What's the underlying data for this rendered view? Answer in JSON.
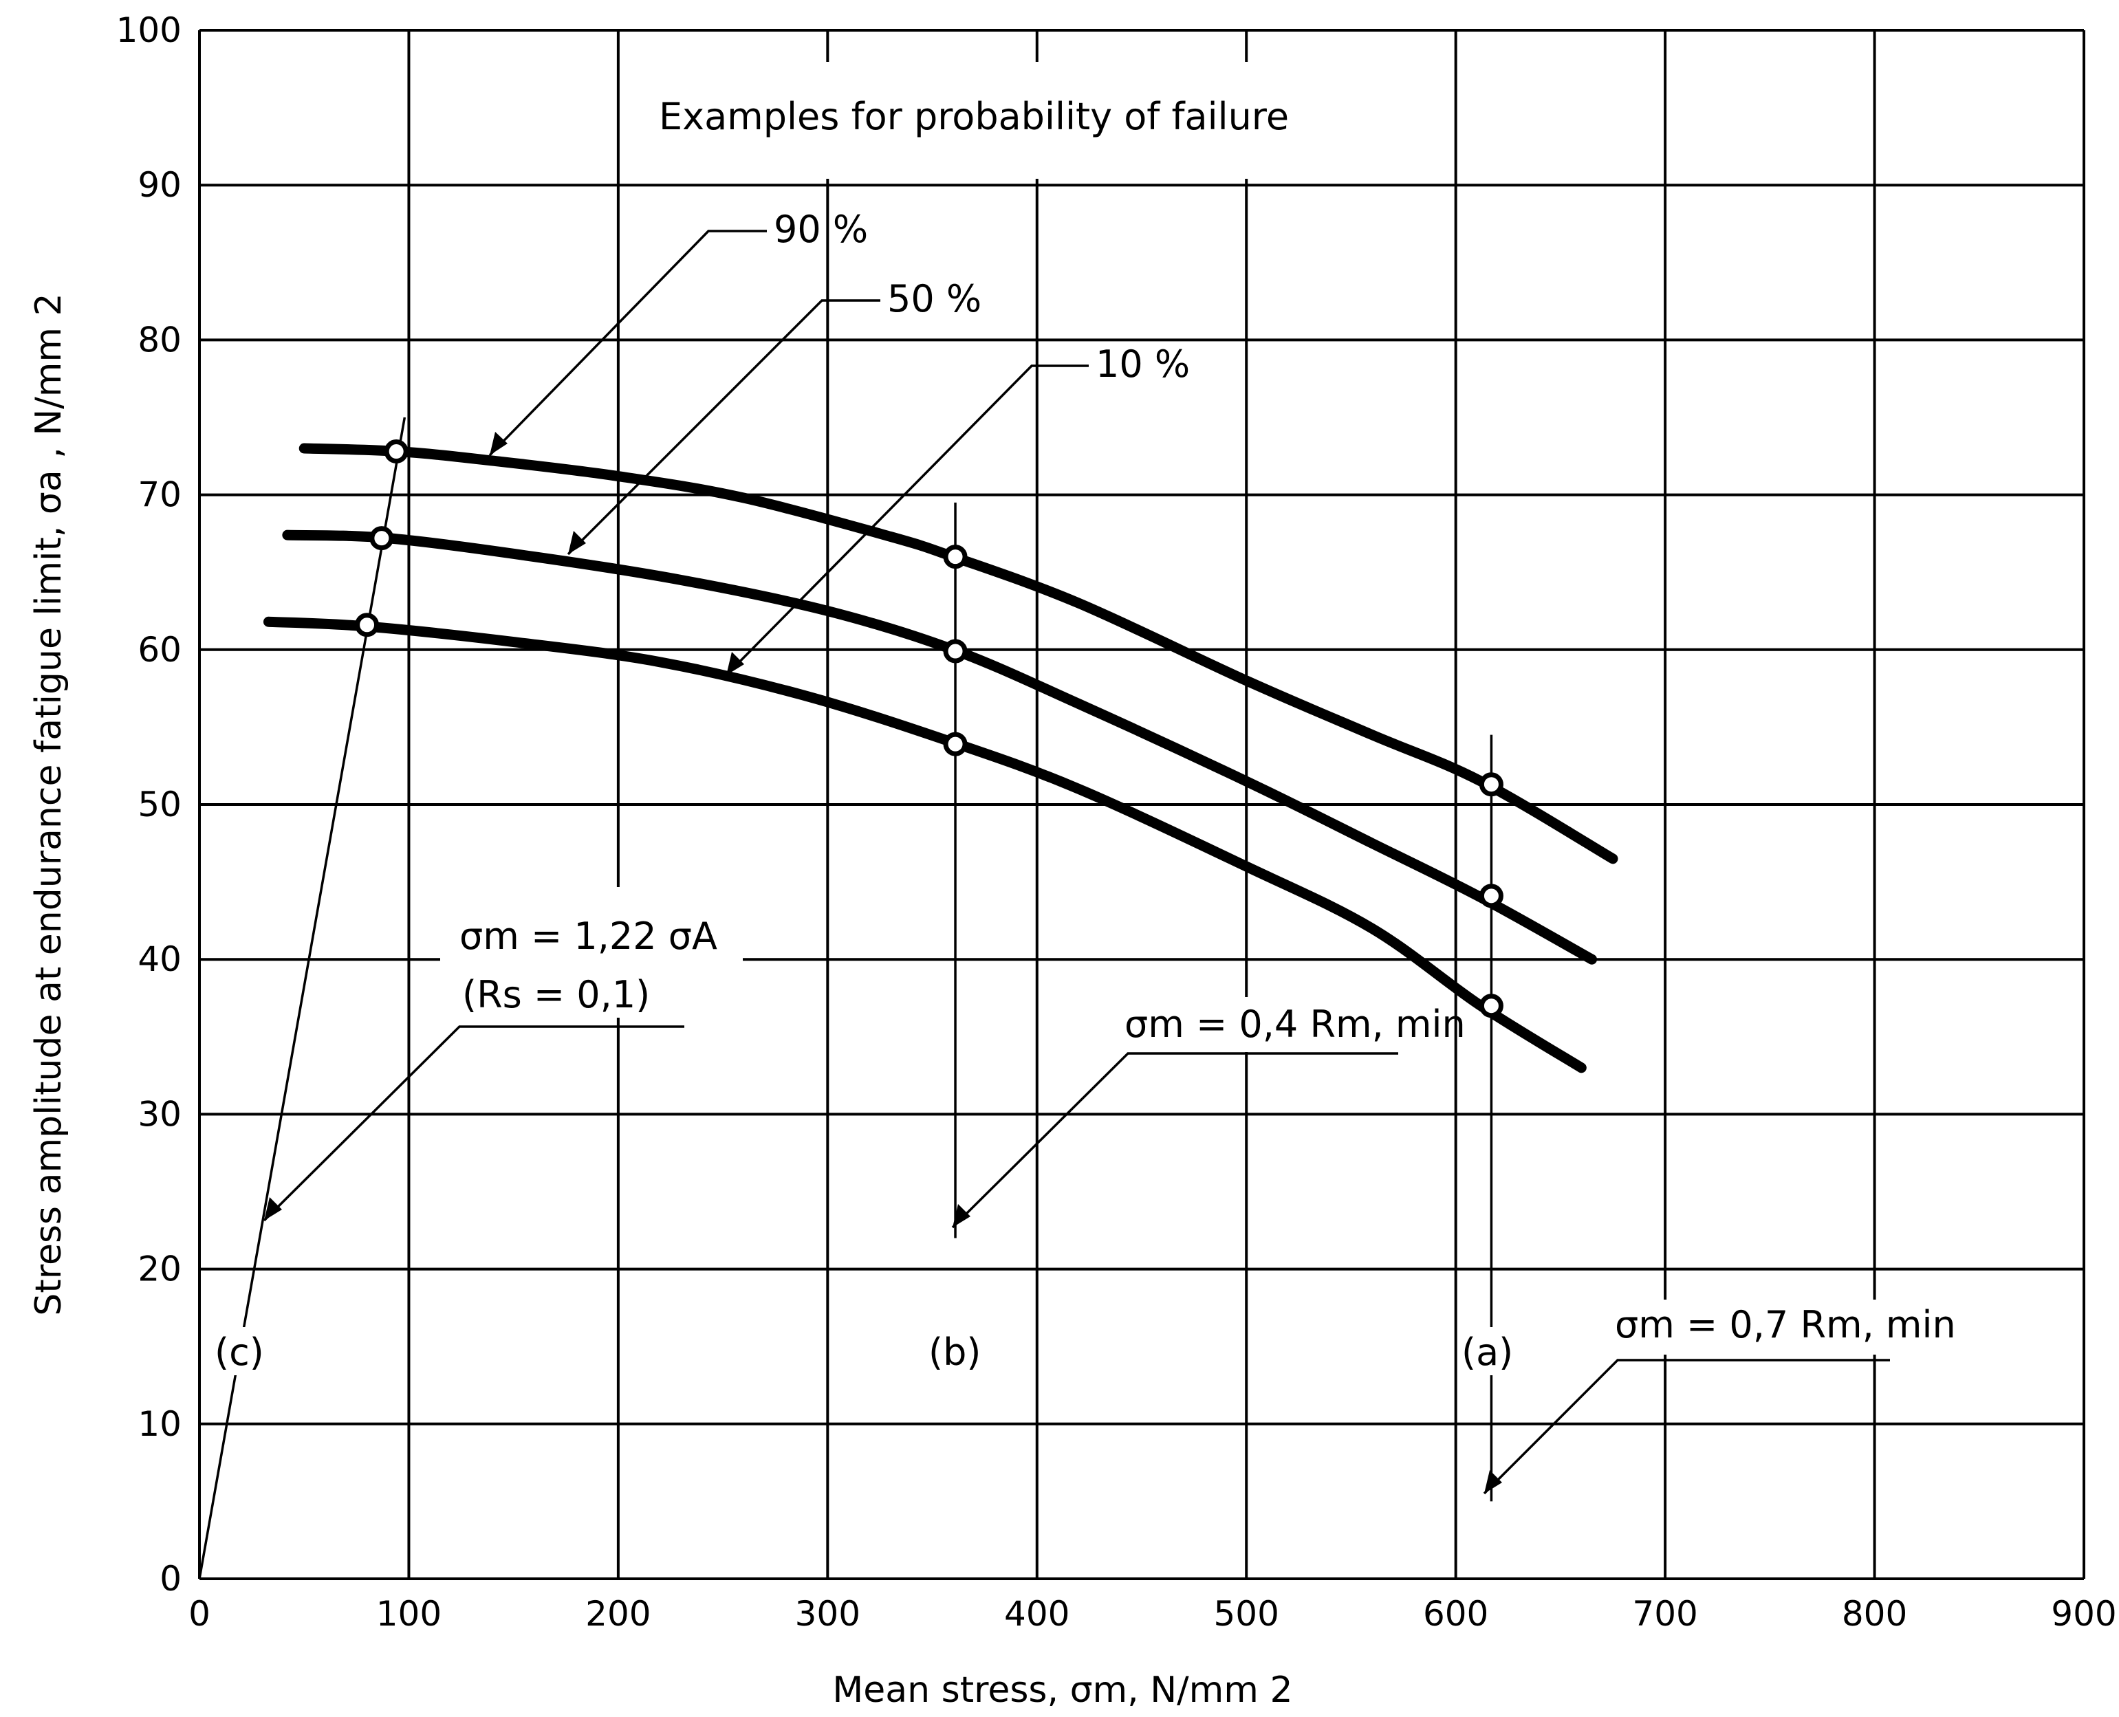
{
  "chart_data": {
    "type": "line",
    "title": "Examples for probability of failure",
    "xlabel": "Mean stress,  σm, N/mm 2",
    "ylabel": "Stress amplitude at endurance fatigue limit,  σa , N/mm 2",
    "xlim": [
      0,
      900
    ],
    "ylim": [
      0,
      100
    ],
    "x_ticks": [
      0,
      100,
      200,
      300,
      400,
      500,
      600,
      700,
      800,
      900
    ],
    "y_ticks": [
      0,
      10,
      20,
      30,
      40,
      50,
      60,
      70,
      80,
      90,
      100
    ],
    "grid": true,
    "series": [
      {
        "name": "90 %",
        "x": [
          50,
          95,
          140,
          200,
          260,
          330,
          360,
          420,
          500,
          560,
          612,
          675
        ],
        "y": [
          73.0,
          72.8,
          72.2,
          71.2,
          69.8,
          67.3,
          66.0,
          63.0,
          58.0,
          54.5,
          51.5,
          46.5
        ]
      },
      {
        "name": "50 %",
        "x": [
          42,
          90,
          160,
          230,
          300,
          360,
          420,
          500,
          560,
          612,
          665
        ],
        "y": [
          67.4,
          67.2,
          66.0,
          64.5,
          62.5,
          60.0,
          56.5,
          51.5,
          47.5,
          44.0,
          40.0
        ]
      },
      {
        "name": "10 %",
        "x": [
          33,
          80,
          150,
          220,
          290,
          360,
          420,
          500,
          560,
          612,
          660
        ],
        "y": [
          61.8,
          61.5,
          60.5,
          59.2,
          57.0,
          54.0,
          51.0,
          46.0,
          42.0,
          37.0,
          33.0
        ]
      }
    ],
    "markers": [
      {
        "x": 94,
        "y": 72.8
      },
      {
        "x": 361,
        "y": 66.0
      },
      {
        "x": 617,
        "y": 51.3
      },
      {
        "x": 87,
        "y": 67.2
      },
      {
        "x": 361,
        "y": 59.9
      },
      {
        "x": 617,
        "y": 44.1
      },
      {
        "x": 80,
        "y": 61.6
      },
      {
        "x": 361,
        "y": 53.9
      },
      {
        "x": 617,
        "y": 37.0
      }
    ],
    "reference_lines": [
      {
        "label": "(c)",
        "formula": "σm = 1,22 σA",
        "condition": "(Rs = 0,1)",
        "from": [
          0,
          0
        ],
        "to": [
          98,
          75
        ]
      },
      {
        "label": "(b)",
        "formula": "σm = 0,4 Rm, min",
        "x": 361,
        "y_range": [
          22,
          69.5
        ]
      },
      {
        "label": "(a)",
        "formula": "σm = 0,7 Rm, min",
        "x": 617,
        "y_range": [
          5,
          54.5
        ]
      }
    ]
  },
  "labels": {
    "title": "Examples for probability of failure",
    "p90": "90 %",
    "p50": "50 %",
    "p10": "10 %",
    "xlabel": "Mean stress,  σm, N/mm 2",
    "ylabel": "Stress amplitude at endurance fatigue limit,  σa , N/mm 2",
    "c_formula": "σm = 1,22 σA",
    "c_condition": "(Rs = 0,1)",
    "c": "(c)",
    "b": "(b)",
    "a": "(a)",
    "b_formula": "σm = 0,4 Rm, min",
    "a_formula": "σm = 0,7 Rm, min"
  }
}
